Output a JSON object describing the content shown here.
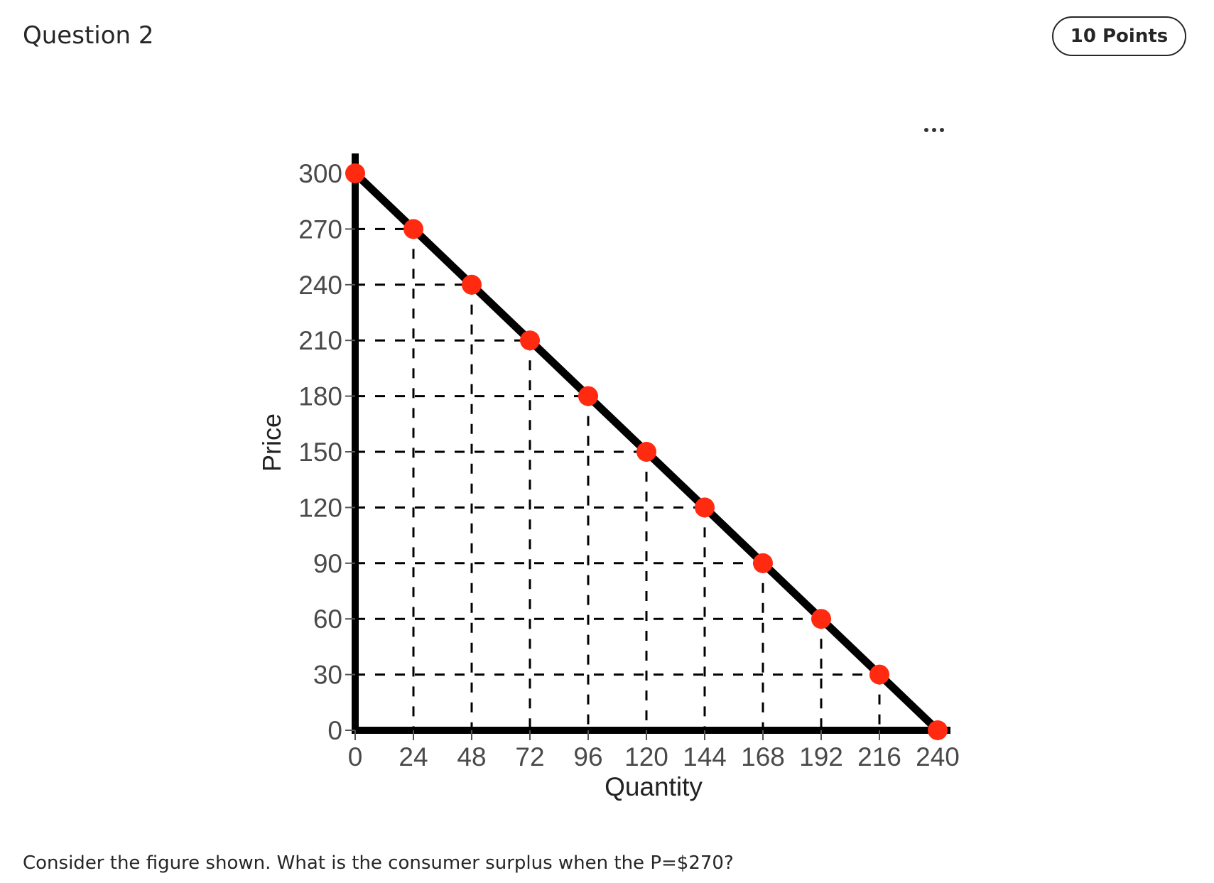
{
  "question": {
    "title": "Question 2",
    "points": "10 Points",
    "menu_icon": "more-horizontal-icon",
    "text": "Consider the figure shown. What is the consumer surplus when the P=$270?"
  },
  "chart_data": {
    "type": "line",
    "xlabel": "Quantity",
    "ylabel": "Price",
    "xlim": [
      0,
      240
    ],
    "ylim": [
      0,
      300
    ],
    "x_ticks": [
      0,
      24,
      48,
      72,
      96,
      120,
      144,
      168,
      192,
      216,
      240
    ],
    "y_ticks": [
      0,
      30,
      60,
      90,
      120,
      150,
      180,
      210,
      240,
      270,
      300
    ],
    "series": [
      {
        "x": [
          0,
          24,
          48,
          72,
          96,
          120,
          144,
          168,
          192,
          216,
          240
        ],
        "y": [
          300,
          270,
          240,
          210,
          180,
          150,
          120,
          90,
          60,
          30,
          0
        ],
        "line_color": "#000000",
        "marker_color": "#ff2a10"
      }
    ],
    "guide_lines": "dashed",
    "grid": false
  }
}
